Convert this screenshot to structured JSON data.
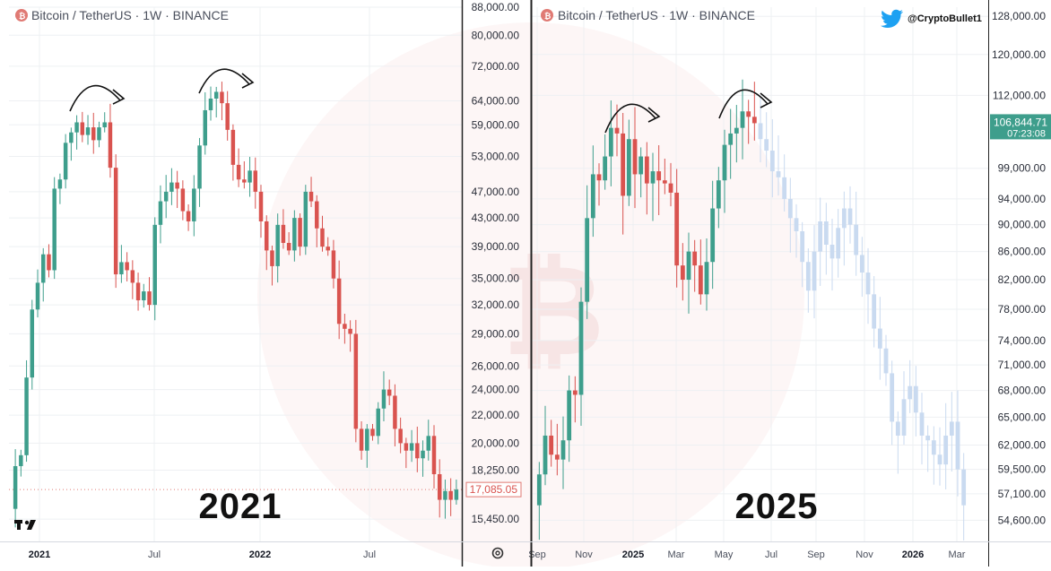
{
  "handle": "@CryptoBullet1",
  "colors": {
    "up": "#3e9e8c",
    "down": "#d9534f",
    "ghost": "#c9daf0",
    "axis_price_bg": "#3e9e8c",
    "axis_last_border": "#e07a74"
  },
  "icons": {
    "twitter": "twitter-bird-icon",
    "tradingview": "tradingview-logo-icon",
    "settings": "gear-icon",
    "symbol": "bitcoin-symbol-icon"
  },
  "chart_data": [
    {
      "type": "candlestick",
      "title": "Bitcoin / TetherUS · 1W · BINANCE",
      "big_label": "2021",
      "scale": "log",
      "ylim": [
        14500,
        88000
      ],
      "y_ticks": [
        "15,450.00",
        "18,250.00",
        "20,000.00",
        "22,000.00",
        "24,000.00",
        "26,000.00",
        "29,000.00",
        "32,000.00",
        "35,000.00",
        "39,000.00",
        "43,000.00",
        "47,000.00",
        "53,000.00",
        "59,000.00",
        "64,000.00",
        "72,000.00",
        "80,000.00",
        "88,000.00"
      ],
      "x_ticks": [
        {
          "label": "2021",
          "bold": true
        },
        {
          "label": "Jul",
          "bold": false
        },
        {
          "label": "2022",
          "bold": true
        },
        {
          "label": "Jul",
          "bold": false
        }
      ],
      "last_price": "17,085.05",
      "arrows": 2,
      "path_points": [
        16000,
        18500,
        19200,
        25000,
        31500,
        34500,
        38000,
        36000,
        47500,
        49000,
        55500,
        57500,
        59500,
        57000,
        58500,
        56000,
        58500,
        59500,
        51000,
        35500,
        37000,
        36000,
        34500,
        32500,
        33500,
        32000,
        42000,
        45500,
        47000,
        48500,
        47500,
        44000,
        42500,
        47500,
        55000,
        62000,
        64500,
        66000,
        63500,
        58000,
        51500,
        49000,
        48500,
        50500,
        47000,
        42500,
        38500,
        36500,
        42000,
        39500,
        38500,
        43000,
        39000,
        47000,
        45500,
        41500,
        39000,
        38500,
        35000,
        30000,
        29500,
        29000,
        21000,
        19500,
        21000,
        20500,
        22500,
        24000,
        23500,
        21000,
        20000,
        19500,
        20000,
        19000,
        19500,
        20500,
        18000,
        16500,
        17000,
        16500,
        17085
      ]
    },
    {
      "type": "candlestick",
      "title": "Bitcoin / TetherUS · 1W · BINANCE",
      "big_label": "2025",
      "scale": "log",
      "ylim": [
        53000,
        130000
      ],
      "y_ticks": [
        "54,600.00",
        "57,100.00",
        "59,500.00",
        "62,000.00",
        "65,000.00",
        "68,000.00",
        "71,000.00",
        "74,000.00",
        "78,000.00",
        "82,000.00",
        "86,000.00",
        "90,000.00",
        "94,000.00",
        "99,000.00",
        "106,844.71",
        "112,000.00",
        "120,000.00",
        "128,000.00"
      ],
      "x_ticks": [
        {
          "label": "Sep",
          "bold": false
        },
        {
          "label": "Nov",
          "bold": false
        },
        {
          "label": "2025",
          "bold": true
        },
        {
          "label": "Mar",
          "bold": false
        },
        {
          "label": "May",
          "bold": false
        },
        {
          "label": "Jul",
          "bold": false
        },
        {
          "label": "Sep",
          "bold": false
        },
        {
          "label": "Nov",
          "bold": false
        },
        {
          "label": "2026",
          "bold": true
        },
        {
          "label": "Mar",
          "bold": false
        }
      ],
      "current_price": "106,844.71",
      "countdown": "07:23:08",
      "arrows": 2,
      "path_points": [
        56000,
        59000,
        63000,
        61000,
        60500,
        62500,
        68000,
        67500,
        79000,
        91000,
        98000,
        97000,
        101000,
        106000,
        105000,
        94500,
        104000,
        98000,
        101000,
        96500,
        98500,
        97000,
        96500,
        95000,
        84000,
        82000,
        86000,
        84000,
        80000,
        84500,
        92500,
        97000,
        103000,
        105000,
        106000,
        109000,
        108000,
        106844
      ],
      "projection_points": [
        104000,
        102000,
        98500,
        97500,
        94000,
        91000,
        89000,
        84500,
        80500,
        86000,
        90500,
        87000,
        85000,
        89500,
        92500,
        90000,
        85500,
        83000,
        80000,
        75500,
        73000,
        70000,
        64500,
        63000,
        67000,
        68500,
        65500,
        63000,
        62500,
        61000,
        60000,
        63000,
        64500,
        59500,
        56000
      ]
    }
  ]
}
